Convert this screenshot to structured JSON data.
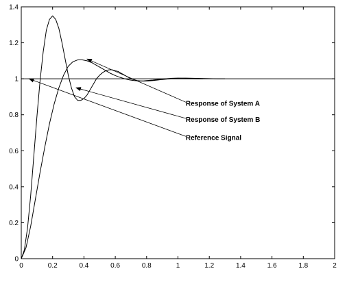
{
  "chart_data": {
    "type": "line",
    "xlim": [
      0,
      2
    ],
    "ylim": [
      0,
      1.4
    ],
    "x_ticks": [
      "0",
      "0.2",
      "0.4",
      "0.6",
      "0.8",
      "1",
      "1.2",
      "1.4",
      "1.6",
      "1.8",
      "2"
    ],
    "y_ticks": [
      "0",
      "0.2",
      "0.4",
      "0.6",
      "0.8",
      "1",
      "1.2",
      "1.4"
    ],
    "grid": false,
    "series": [
      {
        "name": "Response of System A",
        "x": [
          0,
          0.02,
          0.04,
          0.06,
          0.08,
          0.1,
          0.12,
          0.14,
          0.16,
          0.18,
          0.2,
          0.22,
          0.24,
          0.26,
          0.28,
          0.3,
          0.32,
          0.34,
          0.36,
          0.38,
          0.4,
          0.42,
          0.44,
          0.46,
          0.48,
          0.5,
          0.52,
          0.54,
          0.56,
          0.58,
          0.6,
          0.62,
          0.64,
          0.66,
          0.68,
          0.7,
          0.72,
          0.74,
          0.76,
          0.78,
          0.8,
          0.84,
          0.88,
          0.92,
          0.96,
          1.0,
          1.04,
          1.08,
          1.12,
          1.16
        ],
        "y": [
          0,
          0.05,
          0.17,
          0.35,
          0.57,
          0.79,
          0.99,
          1.15,
          1.27,
          1.33,
          1.35,
          1.33,
          1.28,
          1.2,
          1.11,
          1.02,
          0.95,
          0.9,
          0.88,
          0.88,
          0.89,
          0.91,
          0.94,
          0.97,
          1.0,
          1.02,
          1.035,
          1.045,
          1.05,
          1.05,
          1.045,
          1.04,
          1.03,
          1.02,
          1.01,
          1.0,
          0.995,
          0.99,
          0.988,
          0.988,
          0.99,
          0.993,
          0.997,
          1.0,
          1.003,
          1.004,
          1.003,
          1.001,
          1.0,
          1.0
        ]
      },
      {
        "name": "Response of System B",
        "x": [
          0,
          0.03,
          0.06,
          0.09,
          0.12,
          0.15,
          0.18,
          0.21,
          0.24,
          0.27,
          0.3,
          0.33,
          0.36,
          0.39,
          0.42,
          0.45,
          0.48,
          0.51,
          0.54,
          0.57,
          0.6,
          0.63,
          0.66,
          0.69,
          0.72,
          0.75,
          0.78,
          0.81,
          0.84,
          0.87,
          0.9,
          0.95,
          1.0,
          1.05,
          1.1,
          1.15,
          1.2,
          1.25,
          1.3
        ],
        "y": [
          0,
          0.06,
          0.18,
          0.33,
          0.48,
          0.62,
          0.75,
          0.86,
          0.95,
          1.02,
          1.07,
          1.095,
          1.105,
          1.105,
          1.1,
          1.09,
          1.075,
          1.06,
          1.045,
          1.03,
          1.018,
          1.008,
          1.0,
          0.994,
          0.99,
          0.988,
          0.987,
          0.988,
          0.99,
          0.993,
          0.996,
          1.0,
          1.003,
          1.004,
          1.003,
          1.002,
          1.001,
          1.0,
          1.0
        ]
      },
      {
        "name": "Reference Signal",
        "x": [
          0,
          2
        ],
        "y": [
          1,
          1
        ]
      }
    ],
    "annotations": [
      {
        "text": "Response of System A",
        "label_at": [
          1.05,
          0.85
        ],
        "arrow_from": [
          1.05,
          0.87
        ],
        "arrow_to": [
          0.42,
          1.11
        ]
      },
      {
        "text": "Response of System B",
        "label_at": [
          1.05,
          0.76
        ],
        "arrow_from": [
          1.05,
          0.78
        ],
        "arrow_to": [
          0.35,
          0.95
        ]
      },
      {
        "text": "Reference Signal",
        "label_at": [
          1.05,
          0.66
        ],
        "arrow_from": [
          1.05,
          0.68
        ],
        "arrow_to": [
          0.05,
          1.0
        ]
      }
    ]
  }
}
